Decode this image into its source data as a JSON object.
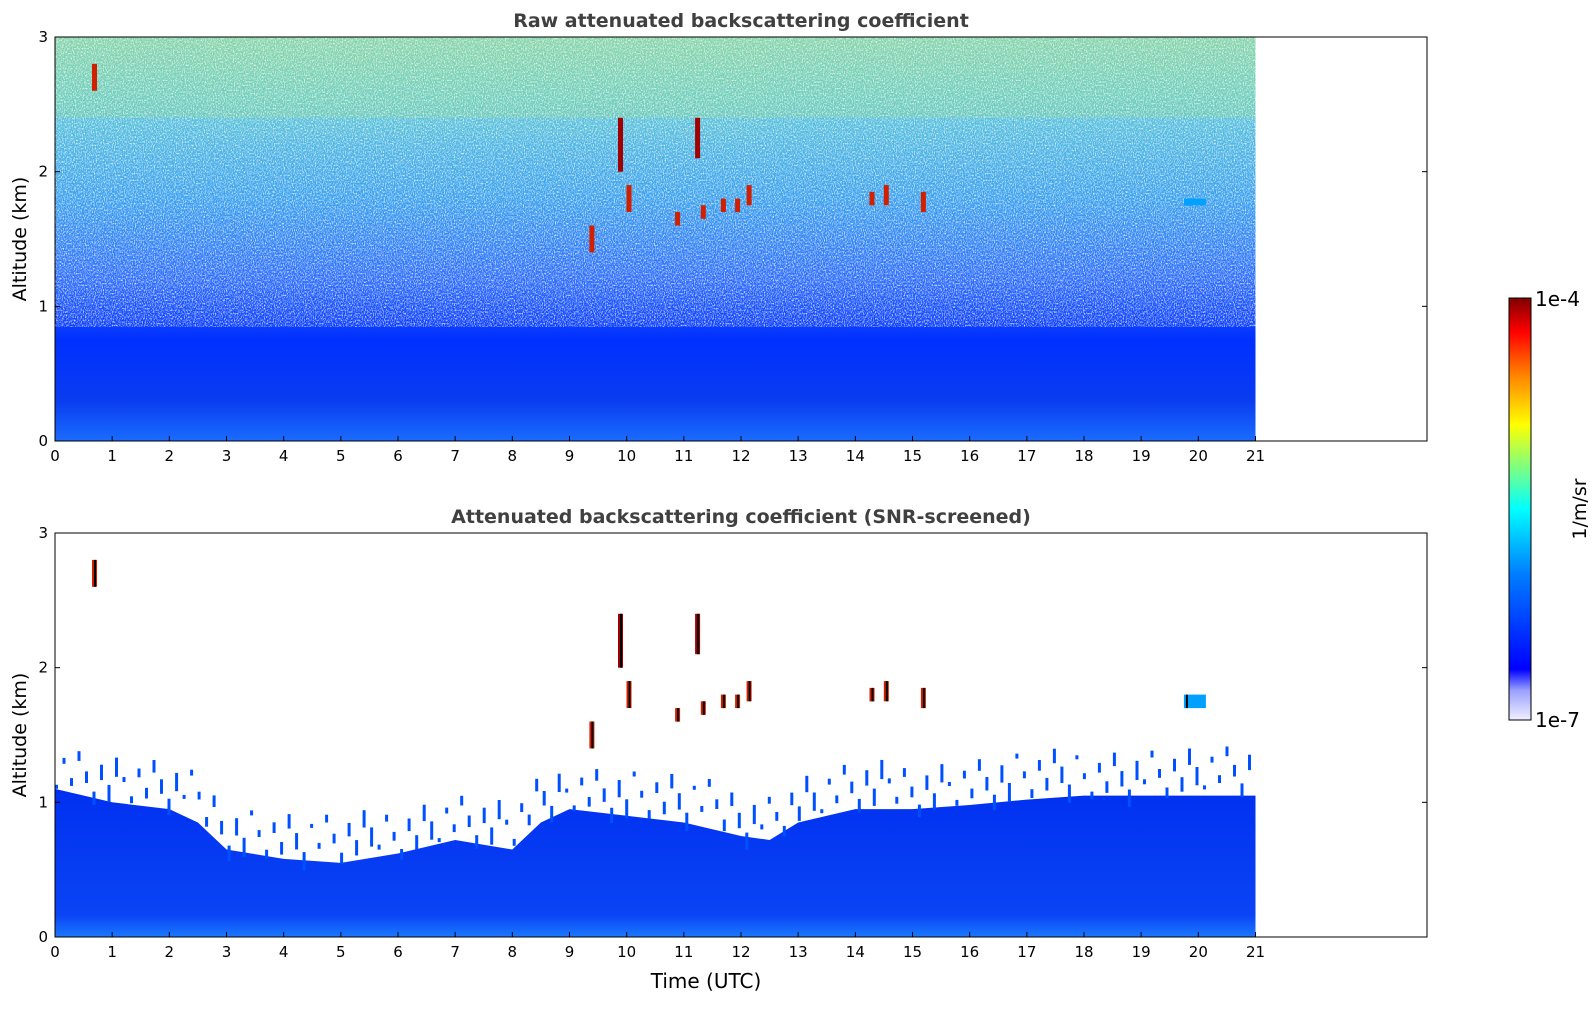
{
  "chart_data": [
    {
      "type": "heatmap",
      "title": "Raw attenuated backscattering coefficient",
      "xlabel": "",
      "ylabel": "Altitude (km)",
      "xlim": [
        0,
        24
      ],
      "ylim": [
        0,
        3
      ],
      "data_extent_x": [
        0,
        21
      ],
      "x_ticks": [
        0,
        1,
        2,
        3,
        4,
        5,
        6,
        7,
        8,
        9,
        10,
        11,
        12,
        13,
        14,
        15,
        16,
        17,
        18,
        19,
        20,
        21
      ],
      "y_ticks": [
        0,
        1,
        2,
        3
      ],
      "color_scale": "log",
      "grid": false,
      "description_layers": [
        {
          "name": "boundary layer",
          "altitude_km": [
            0,
            0.9
          ],
          "level": "~1e-6 (blue)"
        },
        {
          "name": "noisy upper region",
          "altitude_km": [
            1.0,
            3.0
          ],
          "level": "~3e-6 to 1e-5 (cyan to yellow), speckled"
        }
      ],
      "features": [
        {
          "time_utc": 0.7,
          "altitude_km": [
            2.6,
            2.8
          ],
          "level": "high"
        },
        {
          "time_utc": 9.4,
          "altitude_km": [
            1.4,
            1.6
          ],
          "level": "high"
        },
        {
          "time_utc": 9.9,
          "altitude_km": [
            2.0,
            2.4
          ],
          "level": "very high"
        },
        {
          "time_utc": 10.05,
          "altitude_km": [
            1.7,
            1.9
          ],
          "level": "high"
        },
        {
          "time_utc": 10.9,
          "altitude_km": [
            1.6,
            1.7
          ],
          "level": "high"
        },
        {
          "time_utc": 11.25,
          "altitude_km": [
            2.1,
            2.4
          ],
          "level": "very high"
        },
        {
          "time_utc": 11.35,
          "altitude_km": [
            1.65,
            1.75
          ],
          "level": "high"
        },
        {
          "time_utc": 11.7,
          "altitude_km": [
            1.7,
            1.8
          ],
          "level": "high"
        },
        {
          "time_utc": 11.95,
          "altitude_km": [
            1.7,
            1.8
          ],
          "level": "high"
        },
        {
          "time_utc": 12.15,
          "altitude_km": [
            1.75,
            1.9
          ],
          "level": "high"
        },
        {
          "time_utc": 14.3,
          "altitude_km": [
            1.75,
            1.85
          ],
          "level": "high"
        },
        {
          "time_utc": 14.55,
          "altitude_km": [
            1.75,
            1.9
          ],
          "level": "high"
        },
        {
          "time_utc": 15.2,
          "altitude_km": [
            1.7,
            1.85
          ],
          "level": "high"
        },
        {
          "time_utc": 19.8,
          "altitude_km": [
            1.75,
            1.8
          ],
          "level": "medium"
        }
      ]
    },
    {
      "type": "heatmap",
      "title": "Attenuated backscattering coefficient (SNR-screened)",
      "xlabel": "Time (UTC)",
      "ylabel": "Altitude (km)",
      "xlim": [
        0,
        24
      ],
      "ylim": [
        0,
        3
      ],
      "data_extent_x": [
        0,
        21
      ],
      "x_ticks": [
        0,
        1,
        2,
        3,
        4,
        5,
        6,
        7,
        8,
        9,
        10,
        11,
        12,
        13,
        14,
        15,
        16,
        17,
        18,
        19,
        20,
        21
      ],
      "y_ticks": [
        0,
        1,
        2,
        3
      ],
      "color_scale": "log",
      "grid": false,
      "boundary_layer_top_km": [
        [
          0,
          1.1
        ],
        [
          1,
          1.0
        ],
        [
          2,
          0.95
        ],
        [
          2.5,
          0.85
        ],
        [
          3,
          0.65
        ],
        [
          4,
          0.58
        ],
        [
          5,
          0.55
        ],
        [
          6,
          0.62
        ],
        [
          7,
          0.72
        ],
        [
          8,
          0.65
        ],
        [
          8.5,
          0.85
        ],
        [
          9,
          0.95
        ],
        [
          10,
          0.9
        ],
        [
          11,
          0.85
        ],
        [
          12,
          0.75
        ],
        [
          12.5,
          0.72
        ],
        [
          13,
          0.85
        ],
        [
          14,
          0.95
        ],
        [
          15,
          0.95
        ],
        [
          16,
          0.98
        ],
        [
          17,
          1.02
        ],
        [
          18,
          1.05
        ],
        [
          19,
          1.05
        ],
        [
          20,
          1.05
        ],
        [
          21,
          1.05
        ]
      ],
      "features": [
        {
          "time_utc": 0.7,
          "altitude_km": [
            2.6,
            2.8
          ],
          "level": "high"
        },
        {
          "time_utc": 9.4,
          "altitude_km": [
            1.4,
            1.6
          ],
          "level": "high"
        },
        {
          "time_utc": 9.9,
          "altitude_km": [
            2.0,
            2.4
          ],
          "level": "very high"
        },
        {
          "time_utc": 10.05,
          "altitude_km": [
            1.7,
            1.9
          ],
          "level": "high"
        },
        {
          "time_utc": 10.9,
          "altitude_km": [
            1.6,
            1.7
          ],
          "level": "high"
        },
        {
          "time_utc": 11.25,
          "altitude_km": [
            2.1,
            2.4
          ],
          "level": "very high"
        },
        {
          "time_utc": 11.35,
          "altitude_km": [
            1.65,
            1.75
          ],
          "level": "high"
        },
        {
          "time_utc": 11.7,
          "altitude_km": [
            1.7,
            1.8
          ],
          "level": "high"
        },
        {
          "time_utc": 11.95,
          "altitude_km": [
            1.7,
            1.8
          ],
          "level": "high"
        },
        {
          "time_utc": 12.15,
          "altitude_km": [
            1.75,
            1.9
          ],
          "level": "high"
        },
        {
          "time_utc": 14.3,
          "altitude_km": [
            1.75,
            1.85
          ],
          "level": "high"
        },
        {
          "time_utc": 14.55,
          "altitude_km": [
            1.75,
            1.9
          ],
          "level": "high"
        },
        {
          "time_utc": 15.2,
          "altitude_km": [
            1.7,
            1.85
          ],
          "level": "high"
        },
        {
          "time_utc": 19.8,
          "altitude_km": [
            1.7,
            1.8
          ],
          "level": "medium"
        }
      ]
    }
  ],
  "colorbar": {
    "label": "1/m/sr",
    "max_label": "1e-4",
    "min_label": "1e-7",
    "colormap": "jet",
    "colors": [
      "#ffffff",
      "#0000ff",
      "#00a0ff",
      "#00ffff",
      "#80ff80",
      "#ffff00",
      "#ff8000",
      "#ff0000",
      "#800000"
    ]
  },
  "colors": {
    "title_text": "#404040",
    "axis": "#000000"
  }
}
